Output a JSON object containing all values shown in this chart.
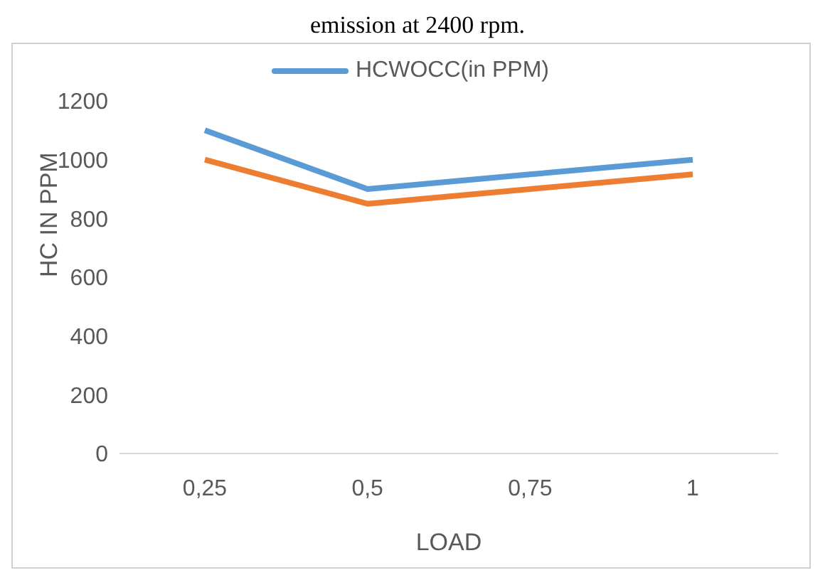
{
  "chart_data": {
    "type": "line",
    "title": "emission at 2400 rpm.",
    "xlabel": "LOAD",
    "ylabel": "HC IN PPM",
    "categories": [
      "0,25",
      "0,5",
      "0,75",
      "1"
    ],
    "series": [
      {
        "name": "HCWOCC(in PPM)",
        "color": "#5b9bd5",
        "values": [
          1100,
          900,
          950,
          1000
        ]
      },
      {
        "color": "#ed7d31",
        "values": [
          1000,
          850,
          900,
          950
        ]
      }
    ],
    "ylim": [
      0,
      1200
    ],
    "yticks": [
      0,
      200,
      400,
      600,
      800,
      1000,
      1200
    ],
    "grid": false,
    "legend": "top",
    "marker": "none"
  }
}
